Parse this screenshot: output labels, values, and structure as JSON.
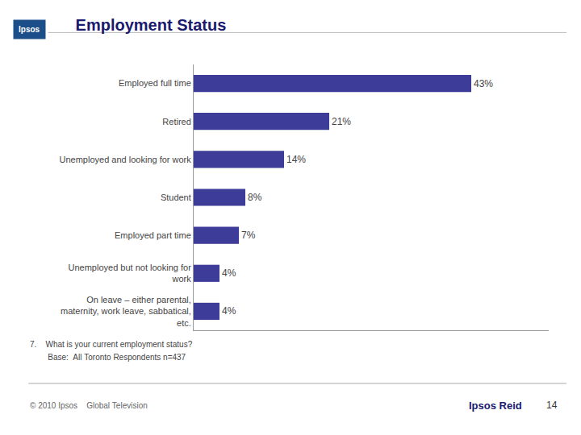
{
  "chart_data": {
    "type": "bar",
    "title": "Employment Status",
    "orientation": "horizontal",
    "categories": [
      "Employed full time",
      "Retired",
      "Unemployed and looking for work",
      "Student",
      "Employed part time",
      "Unemployed but not looking for\nwork",
      "On leave – either parental,\nmaternity, work leave, sabbatical,\netc."
    ],
    "values": [
      43,
      21,
      14,
      8,
      7,
      4,
      4
    ],
    "value_labels": [
      "43%",
      "21%",
      "14%",
      "8%",
      "7%",
      "4%",
      "4%"
    ],
    "data_labels": true,
    "color": "#3d3d99",
    "xlim": [
      0,
      55
    ],
    "tick_labels": "y",
    "grid": false,
    "annotations": [
      "Ipsos",
      "7.    What is your current employment status?",
      "        Base:  All Toronto Respondents n=437",
      "© 2010 Ipsos    Global Television",
      "Ipsos Reid",
      "14"
    ]
  }
}
